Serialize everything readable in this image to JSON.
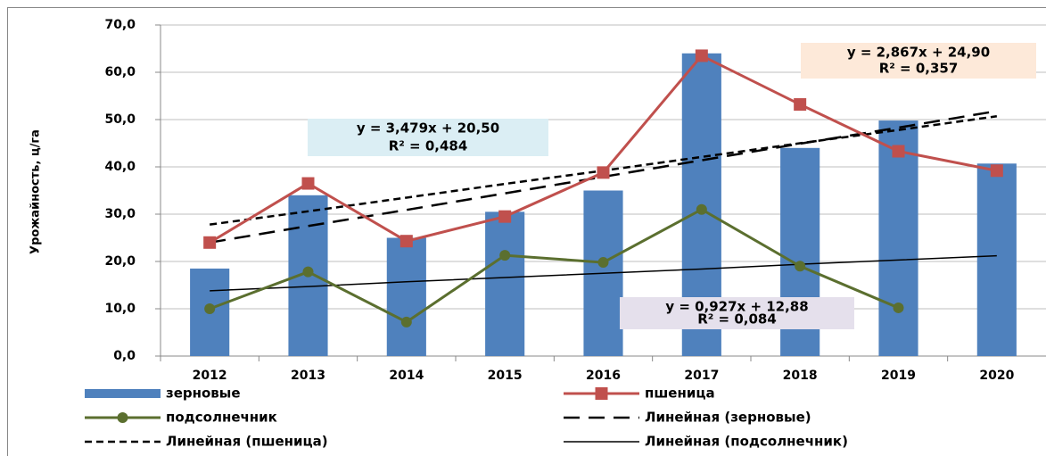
{
  "chart_data": {
    "type": "bar",
    "y_label": "Урожайность, ц/га",
    "categories": [
      "2012",
      "2013",
      "2014",
      "2015",
      "2016",
      "2017",
      "2018",
      "2019",
      "2020"
    ],
    "ylim": [
      0,
      70
    ],
    "yticks": [
      {
        "value": 0,
        "label": "0,0"
      },
      {
        "value": 10,
        "label": "10,0"
      },
      {
        "value": 20,
        "label": "20,0"
      },
      {
        "value": 30,
        "label": "30,0"
      },
      {
        "value": 40,
        "label": "40,0"
      },
      {
        "value": 50,
        "label": "50,0"
      },
      {
        "value": 60,
        "label": "60,0"
      },
      {
        "value": 70,
        "label": "70,0"
      }
    ],
    "grid": true,
    "series": [
      {
        "name": "зерновые",
        "type": "bar",
        "color": "#4f81bd",
        "values": [
          18.5,
          34.0,
          25.0,
          30.5,
          35.0,
          64.0,
          44.0,
          49.8,
          40.7
        ]
      },
      {
        "name": "пшеница",
        "type": "line",
        "marker": "square",
        "color": "#c0504d",
        "values": [
          24.0,
          36.5,
          24.3,
          29.5,
          38.8,
          63.5,
          53.2,
          43.3,
          39.2
        ]
      },
      {
        "name": "подсолнечник",
        "type": "line",
        "marker": "circle",
        "color": "#5b6f2f",
        "values": [
          10.0,
          17.8,
          7.2,
          21.3,
          19.8,
          31.0,
          19.0,
          10.2,
          null
        ]
      },
      {
        "name": "Линейная (зерновые)",
        "type": "trend",
        "dash": "long",
        "color": "#000000",
        "values": [
          24.0,
          27.5,
          30.9,
          34.4,
          37.9,
          41.4,
          44.9,
          48.3,
          51.8
        ]
      },
      {
        "name": "Линейная (пшеница)",
        "type": "trend",
        "dash": "short",
        "color": "#000000",
        "values": [
          27.8,
          30.6,
          33.5,
          36.4,
          39.2,
          42.1,
          45.0,
          47.8,
          50.7
        ]
      },
      {
        "name": "Линейная (подсолнечник)",
        "type": "trend",
        "dash": "solid",
        "color": "#000000",
        "values": [
          13.8,
          14.7,
          15.7,
          16.6,
          17.5,
          18.4,
          19.4,
          20.3,
          21.2
        ]
      }
    ],
    "annotations": [
      {
        "lines": [
          "y = 3,479x + 20,50",
          "R² = 0,484"
        ],
        "fill": "#dbeef4"
      },
      {
        "lines": [
          "y = 2,867x + 24,90",
          "R² = 0,357"
        ],
        "fill": "#fde9d9"
      },
      {
        "lines": [
          "y = 0,927x + 12,88",
          "R² = 0,084"
        ],
        "fill": "#e5e0ec"
      }
    ]
  }
}
